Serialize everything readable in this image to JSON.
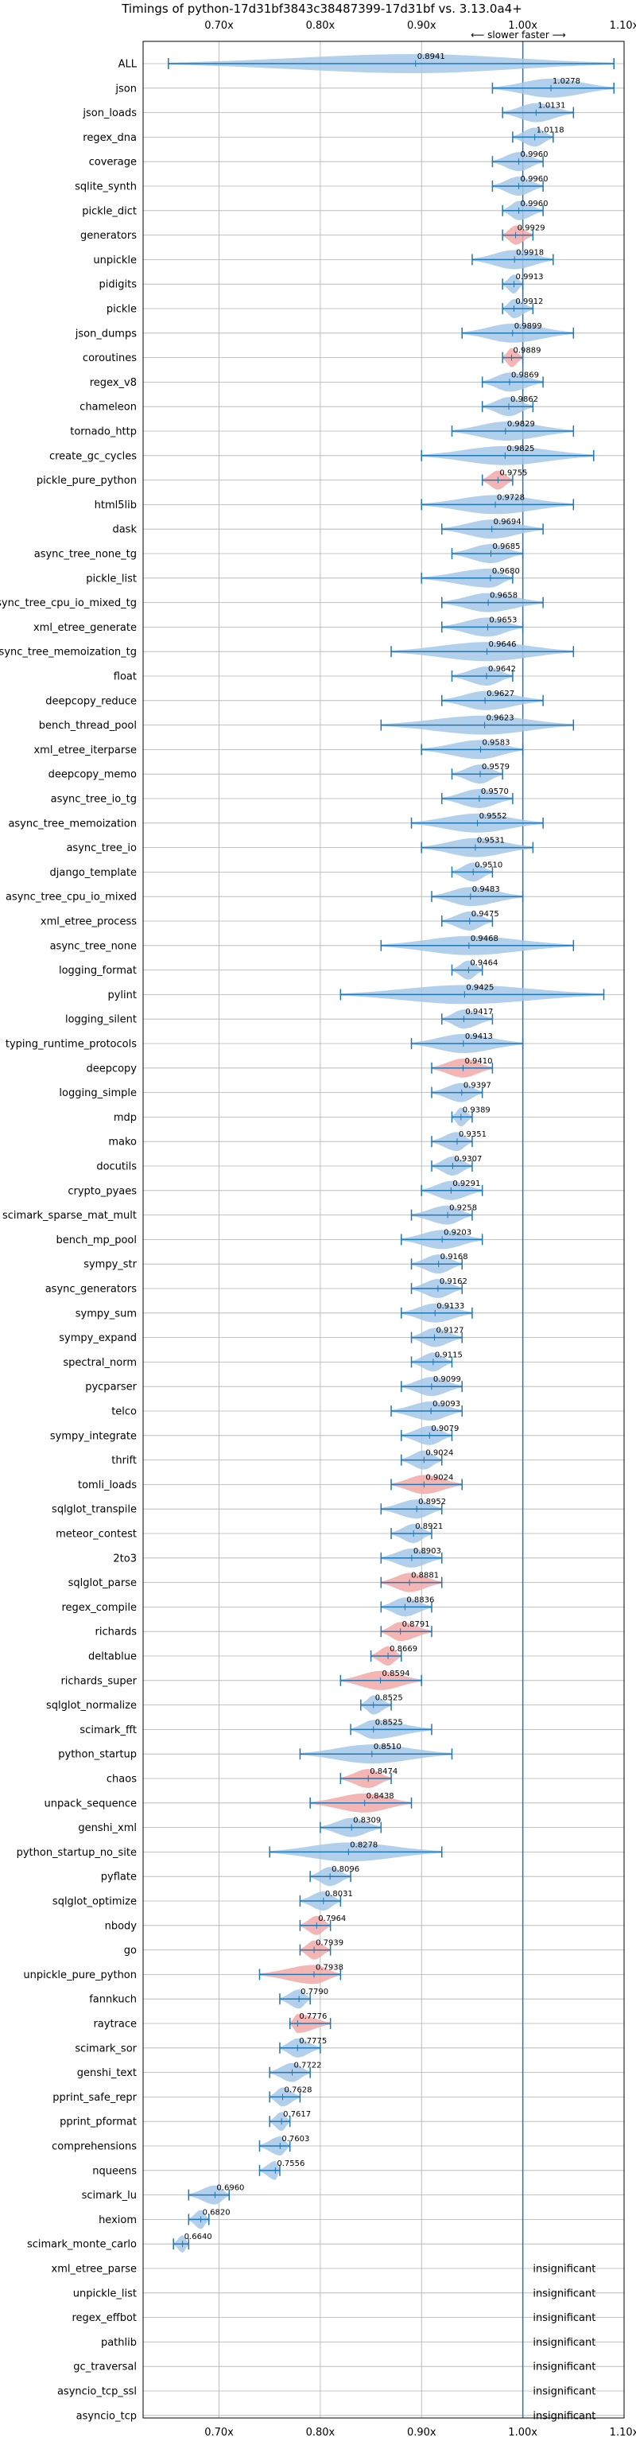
{
  "chart_data": {
    "type": "violin",
    "title": "Timings of python-17d31bf3843c38487399-17d31bf vs. 3.13.0a4+",
    "direction_note": "⟵ slower   faster ⟶",
    "xlim": [
      0.625,
      1.1
    ],
    "xticks": [
      0.7,
      0.8,
      0.9,
      1.0,
      1.1
    ],
    "xtick_labels": [
      "0.70x",
      "0.80x",
      "0.90x",
      "1.00x",
      "1.10x"
    ],
    "grid": true,
    "reference_line": 1.0,
    "colors": {
      "faster": "#a4c8e8",
      "slower": "#f2a8a8",
      "line": "#1f77b4",
      "grid": "#b0b0b0"
    },
    "benchmarks": [
      {
        "name": "ALL",
        "value": 0.8941,
        "label": "0.8941",
        "min": 0.65,
        "max": 1.09,
        "color": "faster"
      },
      {
        "name": "json",
        "value": 1.0278,
        "label": "1.0278",
        "min": 0.97,
        "max": 1.09,
        "color": "faster"
      },
      {
        "name": "json_loads",
        "value": 1.0131,
        "label": "1.0131",
        "min": 0.98,
        "max": 1.05,
        "color": "faster"
      },
      {
        "name": "regex_dna",
        "value": 1.0118,
        "label": "1.0118",
        "min": 0.99,
        "max": 1.03,
        "color": "faster"
      },
      {
        "name": "coverage",
        "value": 0.996,
        "label": "0.9960",
        "min": 0.97,
        "max": 1.02,
        "color": "faster"
      },
      {
        "name": "sqlite_synth",
        "value": 0.996,
        "label": "0.9960",
        "min": 0.97,
        "max": 1.02,
        "color": "faster"
      },
      {
        "name": "pickle_dict",
        "value": 0.996,
        "label": "0.9960",
        "min": 0.98,
        "max": 1.02,
        "color": "faster"
      },
      {
        "name": "generators",
        "value": 0.9929,
        "label": "0.9929",
        "min": 0.98,
        "max": 1.01,
        "color": "slower"
      },
      {
        "name": "unpickle",
        "value": 0.9918,
        "label": "0.9918",
        "min": 0.95,
        "max": 1.03,
        "color": "faster"
      },
      {
        "name": "pidigits",
        "value": 0.9913,
        "label": "0.9913",
        "min": 0.98,
        "max": 1.0,
        "color": "faster"
      },
      {
        "name": "pickle",
        "value": 0.9912,
        "label": "0.9912",
        "min": 0.98,
        "max": 1.01,
        "color": "faster"
      },
      {
        "name": "json_dumps",
        "value": 0.9899,
        "label": "0.9899",
        "min": 0.94,
        "max": 1.05,
        "color": "faster"
      },
      {
        "name": "coroutines",
        "value": 0.9889,
        "label": "0.9889",
        "min": 0.98,
        "max": 1.0,
        "color": "slower"
      },
      {
        "name": "regex_v8",
        "value": 0.9869,
        "label": "0.9869",
        "min": 0.96,
        "max": 1.02,
        "color": "faster"
      },
      {
        "name": "chameleon",
        "value": 0.9862,
        "label": "0.9862",
        "min": 0.96,
        "max": 1.01,
        "color": "faster"
      },
      {
        "name": "tornado_http",
        "value": 0.9829,
        "label": "0.9829",
        "min": 0.93,
        "max": 1.05,
        "color": "faster"
      },
      {
        "name": "create_gc_cycles",
        "value": 0.9825,
        "label": "0.9825",
        "min": 0.9,
        "max": 1.07,
        "color": "faster"
      },
      {
        "name": "pickle_pure_python",
        "value": 0.9755,
        "label": "0.9755",
        "min": 0.96,
        "max": 0.99,
        "color": "slower"
      },
      {
        "name": "html5lib",
        "value": 0.9728,
        "label": "0.9728",
        "min": 0.9,
        "max": 1.05,
        "color": "faster"
      },
      {
        "name": "dask",
        "value": 0.9694,
        "label": "0.9694",
        "min": 0.92,
        "max": 1.02,
        "color": "faster"
      },
      {
        "name": "async_tree_none_tg",
        "value": 0.9685,
        "label": "0.9685",
        "min": 0.93,
        "max": 1.0,
        "color": "faster"
      },
      {
        "name": "pickle_list",
        "value": 0.968,
        "label": "0.9680",
        "min": 0.9,
        "max": 0.99,
        "color": "faster"
      },
      {
        "name": "async_tree_cpu_io_mixed_tg",
        "value": 0.9658,
        "label": "0.9658",
        "min": 0.92,
        "max": 1.02,
        "color": "faster"
      },
      {
        "name": "xml_etree_generate",
        "value": 0.9653,
        "label": "0.9653",
        "min": 0.92,
        "max": 1.0,
        "color": "faster"
      },
      {
        "name": "async_tree_memoization_tg",
        "value": 0.9646,
        "label": "0.9646",
        "min": 0.87,
        "max": 1.05,
        "color": "faster"
      },
      {
        "name": "float",
        "value": 0.9642,
        "label": "0.9642",
        "min": 0.93,
        "max": 0.99,
        "color": "faster"
      },
      {
        "name": "deepcopy_reduce",
        "value": 0.9627,
        "label": "0.9627",
        "min": 0.92,
        "max": 1.02,
        "color": "faster"
      },
      {
        "name": "bench_thread_pool",
        "value": 0.9623,
        "label": "0.9623",
        "min": 0.86,
        "max": 1.05,
        "color": "faster"
      },
      {
        "name": "xml_etree_iterparse",
        "value": 0.9583,
        "label": "0.9583",
        "min": 0.9,
        "max": 1.0,
        "color": "faster"
      },
      {
        "name": "deepcopy_memo",
        "value": 0.9579,
        "label": "0.9579",
        "min": 0.93,
        "max": 0.98,
        "color": "faster"
      },
      {
        "name": "async_tree_io_tg",
        "value": 0.957,
        "label": "0.9570",
        "min": 0.92,
        "max": 0.99,
        "color": "faster"
      },
      {
        "name": "async_tree_memoization",
        "value": 0.9552,
        "label": "0.9552",
        "min": 0.89,
        "max": 1.02,
        "color": "faster"
      },
      {
        "name": "async_tree_io",
        "value": 0.9531,
        "label": "0.9531",
        "min": 0.9,
        "max": 1.01,
        "color": "faster"
      },
      {
        "name": "django_template",
        "value": 0.951,
        "label": "0.9510",
        "min": 0.93,
        "max": 0.97,
        "color": "faster"
      },
      {
        "name": "async_tree_cpu_io_mixed",
        "value": 0.9483,
        "label": "0.9483",
        "min": 0.91,
        "max": 1.0,
        "color": "faster"
      },
      {
        "name": "xml_etree_process",
        "value": 0.9475,
        "label": "0.9475",
        "min": 0.92,
        "max": 0.97,
        "color": "faster"
      },
      {
        "name": "async_tree_none",
        "value": 0.9468,
        "label": "0.9468",
        "min": 0.86,
        "max": 1.05,
        "color": "faster"
      },
      {
        "name": "logging_format",
        "value": 0.9464,
        "label": "0.9464",
        "min": 0.93,
        "max": 0.96,
        "color": "faster"
      },
      {
        "name": "pylint",
        "value": 0.9425,
        "label": "0.9425",
        "min": 0.82,
        "max": 1.08,
        "color": "faster"
      },
      {
        "name": "logging_silent",
        "value": 0.9417,
        "label": "0.9417",
        "min": 0.92,
        "max": 0.97,
        "color": "faster"
      },
      {
        "name": "typing_runtime_protocols",
        "value": 0.9413,
        "label": "0.9413",
        "min": 0.89,
        "max": 1.0,
        "color": "faster"
      },
      {
        "name": "deepcopy",
        "value": 0.941,
        "label": "0.9410",
        "min": 0.91,
        "max": 0.97,
        "color": "slower"
      },
      {
        "name": "logging_simple",
        "value": 0.9397,
        "label": "0.9397",
        "min": 0.91,
        "max": 0.96,
        "color": "faster"
      },
      {
        "name": "mdp",
        "value": 0.9389,
        "label": "0.9389",
        "min": 0.93,
        "max": 0.95,
        "color": "faster"
      },
      {
        "name": "mako",
        "value": 0.9351,
        "label": "0.9351",
        "min": 0.91,
        "max": 0.95,
        "color": "faster"
      },
      {
        "name": "docutils",
        "value": 0.9307,
        "label": "0.9307",
        "min": 0.91,
        "max": 0.95,
        "color": "faster"
      },
      {
        "name": "crypto_pyaes",
        "value": 0.9291,
        "label": "0.9291",
        "min": 0.9,
        "max": 0.96,
        "color": "faster"
      },
      {
        "name": "scimark_sparse_mat_mult",
        "value": 0.9258,
        "label": "0.9258",
        "min": 0.89,
        "max": 0.95,
        "color": "faster"
      },
      {
        "name": "bench_mp_pool",
        "value": 0.9203,
        "label": "0.9203",
        "min": 0.88,
        "max": 0.96,
        "color": "faster"
      },
      {
        "name": "sympy_str",
        "value": 0.9168,
        "label": "0.9168",
        "min": 0.89,
        "max": 0.94,
        "color": "faster"
      },
      {
        "name": "async_generators",
        "value": 0.9162,
        "label": "0.9162",
        "min": 0.89,
        "max": 0.94,
        "color": "faster"
      },
      {
        "name": "sympy_sum",
        "value": 0.9133,
        "label": "0.9133",
        "min": 0.88,
        "max": 0.95,
        "color": "faster"
      },
      {
        "name": "sympy_expand",
        "value": 0.9127,
        "label": "0.9127",
        "min": 0.89,
        "max": 0.94,
        "color": "faster"
      },
      {
        "name": "spectral_norm",
        "value": 0.9115,
        "label": "0.9115",
        "min": 0.89,
        "max": 0.93,
        "color": "faster"
      },
      {
        "name": "pycparser",
        "value": 0.9099,
        "label": "0.9099",
        "min": 0.88,
        "max": 0.94,
        "color": "faster"
      },
      {
        "name": "telco",
        "value": 0.9093,
        "label": "0.9093",
        "min": 0.87,
        "max": 0.94,
        "color": "faster"
      },
      {
        "name": "sympy_integrate",
        "value": 0.9079,
        "label": "0.9079",
        "min": 0.88,
        "max": 0.93,
        "color": "faster"
      },
      {
        "name": "thrift",
        "value": 0.9024,
        "label": "0.9024",
        "min": 0.88,
        "max": 0.92,
        "color": "faster"
      },
      {
        "name": "tomli_loads",
        "value": 0.9024,
        "label": "0.9024",
        "min": 0.87,
        "max": 0.94,
        "color": "slower"
      },
      {
        "name": "sqlglot_transpile",
        "value": 0.8952,
        "label": "0.8952",
        "min": 0.86,
        "max": 0.92,
        "color": "faster"
      },
      {
        "name": "meteor_contest",
        "value": 0.8921,
        "label": "0.8921",
        "min": 0.87,
        "max": 0.91,
        "color": "faster"
      },
      {
        "name": "2to3",
        "value": 0.8903,
        "label": "0.8903",
        "min": 0.86,
        "max": 0.92,
        "color": "faster"
      },
      {
        "name": "sqlglot_parse",
        "value": 0.8881,
        "label": "0.8881",
        "min": 0.86,
        "max": 0.92,
        "color": "slower"
      },
      {
        "name": "regex_compile",
        "value": 0.8836,
        "label": "0.8836",
        "min": 0.86,
        "max": 0.91,
        "color": "faster"
      },
      {
        "name": "richards",
        "value": 0.8791,
        "label": "0.8791",
        "min": 0.86,
        "max": 0.91,
        "color": "slower"
      },
      {
        "name": "deltablue",
        "value": 0.8669,
        "label": "0.8669",
        "min": 0.85,
        "max": 0.88,
        "color": "slower"
      },
      {
        "name": "richards_super",
        "value": 0.8594,
        "label": "0.8594",
        "min": 0.82,
        "max": 0.9,
        "color": "slower"
      },
      {
        "name": "sqlglot_normalize",
        "value": 0.8525,
        "label": "0.8525",
        "min": 0.84,
        "max": 0.87,
        "color": "faster"
      },
      {
        "name": "scimark_fft",
        "value": 0.8525,
        "label": "0.8525",
        "min": 0.83,
        "max": 0.91,
        "color": "faster"
      },
      {
        "name": "python_startup",
        "value": 0.851,
        "label": "0.8510",
        "min": 0.78,
        "max": 0.93,
        "color": "faster"
      },
      {
        "name": "chaos",
        "value": 0.8474,
        "label": "0.8474",
        "min": 0.82,
        "max": 0.87,
        "color": "slower"
      },
      {
        "name": "unpack_sequence",
        "value": 0.8438,
        "label": "0.8438",
        "min": 0.79,
        "max": 0.89,
        "color": "slower"
      },
      {
        "name": "genshi_xml",
        "value": 0.8309,
        "label": "0.8309",
        "min": 0.8,
        "max": 0.86,
        "color": "faster"
      },
      {
        "name": "python_startup_no_site",
        "value": 0.8278,
        "label": "0.8278",
        "min": 0.75,
        "max": 0.92,
        "color": "faster"
      },
      {
        "name": "pyflate",
        "value": 0.8096,
        "label": "0.8096",
        "min": 0.79,
        "max": 0.83,
        "color": "faster"
      },
      {
        "name": "sqlglot_optimize",
        "value": 0.8031,
        "label": "0.8031",
        "min": 0.78,
        "max": 0.82,
        "color": "faster"
      },
      {
        "name": "nbody",
        "value": 0.7964,
        "label": "0.7964",
        "min": 0.78,
        "max": 0.81,
        "color": "slower"
      },
      {
        "name": "go",
        "value": 0.7939,
        "label": "0.7939",
        "min": 0.78,
        "max": 0.81,
        "color": "slower"
      },
      {
        "name": "unpickle_pure_python",
        "value": 0.7938,
        "label": "0.7938",
        "min": 0.74,
        "max": 0.82,
        "color": "slower"
      },
      {
        "name": "fannkuch",
        "value": 0.779,
        "label": "0.7790",
        "min": 0.76,
        "max": 0.79,
        "color": "faster"
      },
      {
        "name": "raytrace",
        "value": 0.7776,
        "label": "0.7776",
        "min": 0.77,
        "max": 0.81,
        "color": "slower"
      },
      {
        "name": "scimark_sor",
        "value": 0.7775,
        "label": "0.7775",
        "min": 0.76,
        "max": 0.8,
        "color": "faster"
      },
      {
        "name": "genshi_text",
        "value": 0.7722,
        "label": "0.7722",
        "min": 0.75,
        "max": 0.79,
        "color": "faster"
      },
      {
        "name": "pprint_safe_repr",
        "value": 0.7628,
        "label": "0.7628",
        "min": 0.75,
        "max": 0.78,
        "color": "faster"
      },
      {
        "name": "pprint_pformat",
        "value": 0.7617,
        "label": "0.7617",
        "min": 0.75,
        "max": 0.77,
        "color": "faster"
      },
      {
        "name": "comprehensions",
        "value": 0.7603,
        "label": "0.7603",
        "min": 0.74,
        "max": 0.77,
        "color": "faster"
      },
      {
        "name": "nqueens",
        "value": 0.7556,
        "label": "0.7556",
        "min": 0.74,
        "max": 0.76,
        "color": "faster"
      },
      {
        "name": "scimark_lu",
        "value": 0.696,
        "label": "0.6960",
        "min": 0.67,
        "max": 0.71,
        "color": "faster"
      },
      {
        "name": "hexiom",
        "value": 0.682,
        "label": "0.6820",
        "min": 0.67,
        "max": 0.69,
        "color": "faster"
      },
      {
        "name": "scimark_monte_carlo",
        "value": 0.664,
        "label": "0.6640",
        "min": 0.655,
        "max": 0.67,
        "color": "faster"
      },
      {
        "name": "xml_etree_parse",
        "value": null,
        "label": "insignificant",
        "min": null,
        "max": null,
        "color": "faster"
      },
      {
        "name": "unpickle_list",
        "value": null,
        "label": "insignificant",
        "min": null,
        "max": null,
        "color": "faster"
      },
      {
        "name": "regex_effbot",
        "value": null,
        "label": "insignificant",
        "min": null,
        "max": null,
        "color": "faster"
      },
      {
        "name": "pathlib",
        "value": null,
        "label": "insignificant",
        "min": null,
        "max": null,
        "color": "faster"
      },
      {
        "name": "gc_traversal",
        "value": null,
        "label": "insignificant",
        "min": null,
        "max": null,
        "color": "faster"
      },
      {
        "name": "asyncio_tcp_ssl",
        "value": null,
        "label": "insignificant",
        "min": null,
        "max": null,
        "color": "faster"
      },
      {
        "name": "asyncio_tcp",
        "value": null,
        "label": "insignificant",
        "min": null,
        "max": null,
        "color": "faster"
      }
    ]
  }
}
